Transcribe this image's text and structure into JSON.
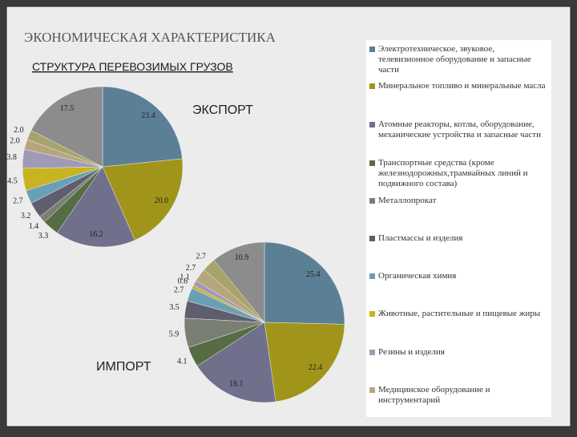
{
  "header": {
    "title": "ЭКОНОМИЧЕСКАЯ ХАРАКТЕРИСТИКА",
    "subtitle": "СТРУКТУРА ПЕРЕВОЗИМЫХ ГРУЗОВ"
  },
  "chart_data": [
    {
      "type": "pie",
      "title": "ЭКСПОРТ",
      "categories": [
        "Электротехническое, звуковое, телевизионное оборудование и запасные части",
        "Минеральное топливо и минеральные масла",
        "Атомные реакторы, котлы, оборудование, механические устройства и запасные части",
        "Транспортные средства (кроме железнодорожных,трамвайных линий и подвижного состава)",
        "Металлопрокат",
        "Пластмассы и изделия",
        "Органическая химия",
        "Животные, растительные и пищевые жиры",
        "Резины и изделия",
        "Медицинское оборудование и инструментарий",
        null,
        null
      ],
      "values": [
        23.4,
        20.0,
        16.2,
        3.3,
        1.4,
        3.2,
        2.7,
        4.5,
        3.8,
        2.0,
        2.0,
        17.5
      ],
      "value_labels": [
        "23.4",
        "20.0",
        "16.2",
        "3.3",
        "1.4",
        "3.2",
        "2.7",
        "4.5",
        "3.8",
        "2.0",
        "2.0",
        "17.5"
      ],
      "colors": [
        "#5b8096",
        "#a0951a",
        "#706f8c",
        "#566d44",
        "#7a7f74",
        "#5e5e6e",
        "#6aa0b5",
        "#c8b422",
        "#a09ab5",
        "#b5a67e",
        "#a8a36a",
        "#8c8c8c"
      ]
    },
    {
      "type": "pie",
      "title": "ИМПОРТ",
      "categories": [
        "Электротехническое, звуковое, телевизионное оборудование и запасные части",
        "Минеральное топливо и минеральные масла",
        "Атомные реакторы, котлы, оборудование, механические устройства и запасные части",
        "Транспортные средства (кроме железнодорожных,трамвайных линий и подвижного состава)",
        "Металлопрокат",
        "Пластмассы и изделия",
        "Органическая химия",
        "Животные, растительные и пищевые жиры",
        "Резины и изделия",
        "Медицинское оборудование и инструментарий",
        null,
        null
      ],
      "values": [
        25.4,
        22.4,
        18.1,
        4.1,
        5.9,
        3.5,
        2.7,
        0.6,
        1.1,
        2.7,
        2.7,
        10.9
      ],
      "value_labels": [
        "25.4",
        "22.4",
        "18.1",
        "4.1",
        "5.9",
        "3.5",
        "2.7",
        "0.6",
        "1.1",
        "2.7",
        "2.7",
        "10.9"
      ],
      "colors": [
        "#5b8096",
        "#a0951a",
        "#706f8c",
        "#566d44",
        "#7a7f74",
        "#5e5e6e",
        "#6aa0b5",
        "#c8b422",
        "#a09ab5",
        "#b5a67e",
        "#a8a36a",
        "#8c8c8c"
      ]
    }
  ]
}
